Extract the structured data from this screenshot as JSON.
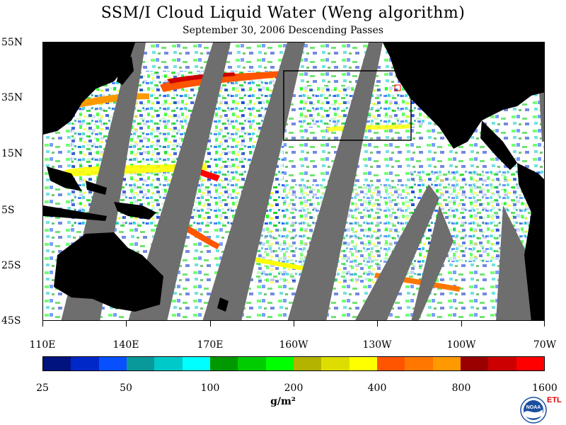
{
  "title": "SSM/I Cloud Liquid Water (Weng algorithm)",
  "subtitle": "September 30, 2006  Descending Passes",
  "lat_labels": [
    "55N",
    "35N",
    "15N",
    "5S",
    "25S",
    "45S"
  ],
  "lon_labels": [
    "110E",
    "140E",
    "170E",
    "160W",
    "130W",
    "100W",
    "70W"
  ],
  "colorbar": {
    "colors": [
      "#00137f",
      "#0028c8",
      "#0850ff",
      "#09999a",
      "#00c9c9",
      "#00ffff",
      "#009900",
      "#00cc00",
      "#00ff00",
      "#b3b300",
      "#dddd00",
      "#ffff00",
      "#ff5500",
      "#ff7700",
      "#ff9900",
      "#990000",
      "#cc0000",
      "#ff0000"
    ],
    "labels": [
      "25",
      "50",
      "100",
      "200",
      "400",
      "800",
      "1600"
    ]
  },
  "unit": "g/m²",
  "logo": {
    "agency": "NOAA",
    "lab": "ETL"
  },
  "colors": {
    "land": "#000000",
    "no_data_swath": "#6e6e6e",
    "ocean_clear": "#ffffff"
  }
}
